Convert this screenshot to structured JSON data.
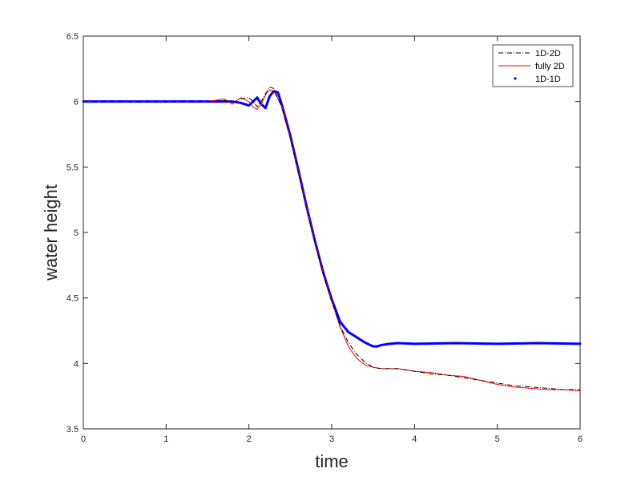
{
  "chart_data": {
    "type": "line",
    "title": "",
    "xlabel": "time",
    "ylabel": "water height",
    "xlim": [
      0,
      6
    ],
    "ylim": [
      3.5,
      6.5
    ],
    "xticks": [
      0,
      1,
      2,
      3,
      4,
      5,
      6
    ],
    "xtick_labels": [
      "0",
      "1",
      "2",
      "3",
      "4",
      "5",
      "6"
    ],
    "yticks": [
      3.5,
      4,
      4.5,
      5,
      5.5,
      6,
      6.5
    ],
    "ytick_labels": [
      "3.5",
      "4",
      "4.5",
      "5",
      "5.5",
      "6",
      "6.5"
    ],
    "grid": false,
    "legend_position": "top-right",
    "series": [
      {
        "name": "1D-2D",
        "style": "dash-dot",
        "color": "#000000",
        "x": [
          0,
          1.5,
          1.6,
          1.7,
          1.8,
          1.9,
          2.0,
          2.05,
          2.1,
          2.15,
          2.2,
          2.25,
          2.3,
          2.4,
          2.5,
          2.6,
          2.7,
          2.8,
          2.9,
          3.0,
          3.1,
          3.2,
          3.3,
          3.4,
          3.5,
          3.6,
          3.7,
          3.8,
          3.9,
          4.0,
          4.2,
          4.4,
          4.6,
          4.8,
          5.0,
          5.2,
          5.4,
          5.6,
          5.8,
          6.0
        ],
        "y": [
          6.0,
          6.0,
          6.0,
          6.01,
          5.99,
          6.02,
          6.03,
          6.0,
          5.96,
          6.0,
          6.06,
          6.11,
          6.1,
          5.95,
          5.72,
          5.45,
          5.18,
          4.92,
          4.68,
          4.47,
          4.29,
          4.16,
          4.07,
          4.01,
          3.97,
          3.96,
          3.96,
          3.96,
          3.95,
          3.94,
          3.92,
          3.91,
          3.89,
          3.87,
          3.85,
          3.83,
          3.82,
          3.81,
          3.8,
          3.8
        ]
      },
      {
        "name": "fully 2D",
        "style": "solid",
        "color": "#ff0000",
        "x": [
          0,
          1.5,
          1.6,
          1.7,
          1.8,
          1.9,
          2.0,
          2.05,
          2.1,
          2.15,
          2.2,
          2.25,
          2.3,
          2.4,
          2.5,
          2.6,
          2.7,
          2.8,
          2.9,
          3.0,
          3.1,
          3.2,
          3.3,
          3.4,
          3.5,
          3.6,
          3.7,
          3.8,
          3.9,
          4.0,
          4.2,
          4.4,
          4.6,
          4.8,
          5.0,
          5.2,
          5.4,
          5.6,
          5.8,
          6.0
        ],
        "y": [
          6.0,
          6.0,
          6.01,
          6.02,
          5.98,
          6.03,
          6.0,
          5.96,
          5.94,
          5.98,
          6.05,
          6.09,
          6.08,
          5.96,
          5.73,
          5.46,
          5.19,
          4.93,
          4.69,
          4.48,
          4.28,
          4.13,
          4.04,
          3.99,
          3.97,
          3.96,
          3.96,
          3.96,
          3.95,
          3.94,
          3.93,
          3.91,
          3.9,
          3.87,
          3.84,
          3.82,
          3.81,
          3.8,
          3.8,
          3.79
        ]
      },
      {
        "name": "1D-1D",
        "style": "dots",
        "color": "#0000ff",
        "x": [
          0,
          1.5,
          1.7,
          1.8,
          1.9,
          2.0,
          2.05,
          2.1,
          2.15,
          2.2,
          2.25,
          2.3,
          2.35,
          2.4,
          2.5,
          2.6,
          2.7,
          2.8,
          2.9,
          3.0,
          3.1,
          3.2,
          3.3,
          3.4,
          3.5,
          3.55,
          3.6,
          3.7,
          3.8,
          4.0,
          4.5,
          5.0,
          5.5,
          6.0
        ],
        "y": [
          6.0,
          6.0,
          6.0,
          6.0,
          5.99,
          5.97,
          6.0,
          6.03,
          5.98,
          5.95,
          6.04,
          6.08,
          6.07,
          5.97,
          5.74,
          5.47,
          5.19,
          4.93,
          4.69,
          4.49,
          4.32,
          4.24,
          4.2,
          4.16,
          4.13,
          4.13,
          4.14,
          4.15,
          4.155,
          4.15,
          4.155,
          4.15,
          4.155,
          4.15
        ]
      }
    ]
  }
}
